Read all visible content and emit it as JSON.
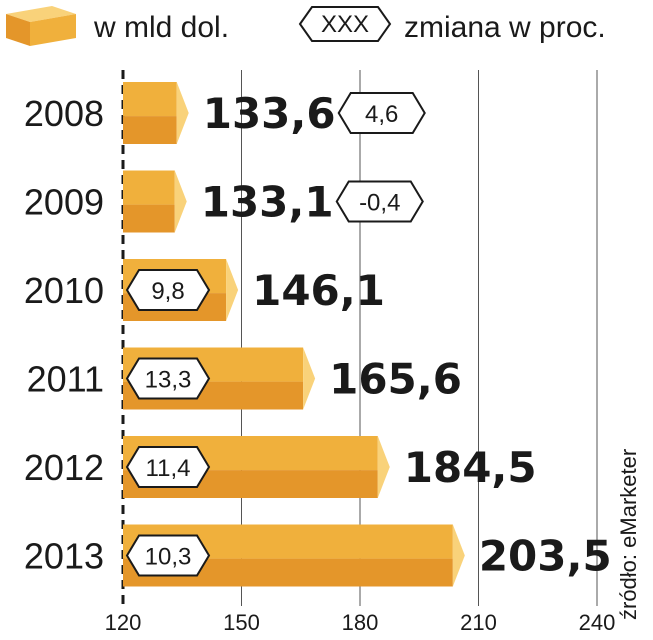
{
  "chart_data": {
    "type": "bar",
    "orientation": "horizontal",
    "categories": [
      "2008",
      "2009",
      "2010",
      "2011",
      "2012",
      "2013"
    ],
    "values": [
      133.6,
      133.1,
      146.1,
      165.6,
      184.5,
      203.5
    ],
    "value_labels": [
      "133,6",
      "133,1",
      "146,1",
      "165,6",
      "184,5",
      "203,5"
    ],
    "changes": [
      "4,6",
      "-0,4",
      "9,8",
      "13,3",
      "11,4",
      "10,3"
    ],
    "xlim": [
      120,
      240
    ],
    "xticks": [
      120,
      150,
      180,
      210,
      240
    ],
    "grid": true,
    "legend": {
      "value_label": "w mld dol.",
      "change_symbol": "XXX",
      "change_label": "zmiana w proc.",
      "placement": "top"
    },
    "source": "źródło: eMarketer"
  },
  "colors": {
    "bar_front": "#f0b03c",
    "bar_bottom": "#e4962a",
    "bar_cap": "#f9d27a",
    "grid": "#555555",
    "text": "#1a1a1a"
  }
}
